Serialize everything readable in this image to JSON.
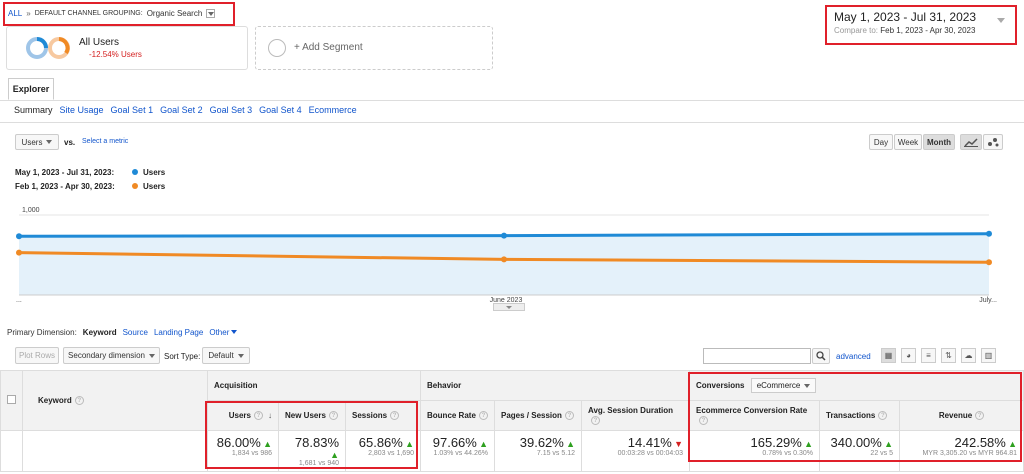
{
  "breadcrumb": {
    "all": "ALL",
    "sep": "»",
    "grouping": "DEFAULT CHANNEL GROUPING:",
    "value": "Organic Search"
  },
  "segment": {
    "name": "All Users",
    "delta": "-12.54% Users",
    "add": "+ Add Segment"
  },
  "daterange": {
    "current": "May 1, 2023 - Jul 31, 2023",
    "compare_label": "Compare to:",
    "compare": "Feb 1, 2023 - Apr 30, 2023"
  },
  "explorer_tab": "Explorer",
  "subtabs": [
    "Summary",
    "Site Usage",
    "Goal Set 1",
    "Goal Set 2",
    "Goal Set 3",
    "Goal Set 4",
    "Ecommerce"
  ],
  "metric_select": {
    "value": "Users",
    "vs": "vs.",
    "select": "Select a metric"
  },
  "granularity": [
    "Day",
    "Week",
    "Month"
  ],
  "legend": [
    {
      "range": "May 1, 2023 - Jul 31, 2023:",
      "series": "Users",
      "color": "#1f8ad6"
    },
    {
      "range": "Feb 1, 2023 - Apr 30, 2023:",
      "series": "Users",
      "color": "#f08a24"
    }
  ],
  "chart_data": {
    "type": "line",
    "x": [
      "...",
      "June 2023",
      "July..."
    ],
    "yticks": [
      "1,000",
      "500"
    ],
    "ylim": [
      0,
      1250
    ],
    "series": [
      {
        "name": "Users",
        "values": [
          735,
          742,
          765
        ],
        "color": "#1f8ad6"
      },
      {
        "name": "Users",
        "values": [
          530,
          445,
          410
        ],
        "color": "#f08a24"
      }
    ]
  },
  "primary_dimension": {
    "label": "Primary Dimension:",
    "active": "Keyword",
    "options": [
      "Source",
      "Landing Page",
      "Other"
    ]
  },
  "toolbar": {
    "plot_rows": "Plot Rows",
    "secondary": "Secondary dimension",
    "sort_label": "Sort Type:",
    "sort_value": "Default",
    "advanced": "advanced"
  },
  "table": {
    "keyword_header": "Keyword",
    "groups": {
      "acquisition": "Acquisition",
      "behavior": "Behavior",
      "conversions": "Conversions",
      "conv_select": "eCommerce"
    },
    "columns": [
      {
        "name": "Users",
        "value": "86.00%",
        "sub": "1,834 vs 986",
        "dir": "up"
      },
      {
        "name": "New Users",
        "value": "78.83%",
        "sub": "1,681 vs 940",
        "dir": "up"
      },
      {
        "name": "Sessions",
        "value": "65.86%",
        "sub": "2,803 vs 1,690",
        "dir": "up"
      },
      {
        "name": "Bounce Rate",
        "value": "97.66%",
        "sub": "1.03% vs 44.26%",
        "dir": "up"
      },
      {
        "name": "Pages / Session",
        "value": "39.62%",
        "sub": "7.15 vs 5.12",
        "dir": "up"
      },
      {
        "name": "Avg. Session Duration",
        "value": "14.41%",
        "sub": "00:03:28 vs 00:04:03",
        "dir": "down"
      },
      {
        "name": "Ecommerce Conversion Rate",
        "value": "165.29%",
        "sub": "0.78% vs 0.30%",
        "dir": "up"
      },
      {
        "name": "Transactions",
        "value": "340.00%",
        "sub": "22 vs 5",
        "dir": "up"
      },
      {
        "name": "Revenue",
        "value": "242.58%",
        "sub": "MYR 3,305.20 vs MYR 964.81",
        "dir": "up"
      }
    ]
  }
}
